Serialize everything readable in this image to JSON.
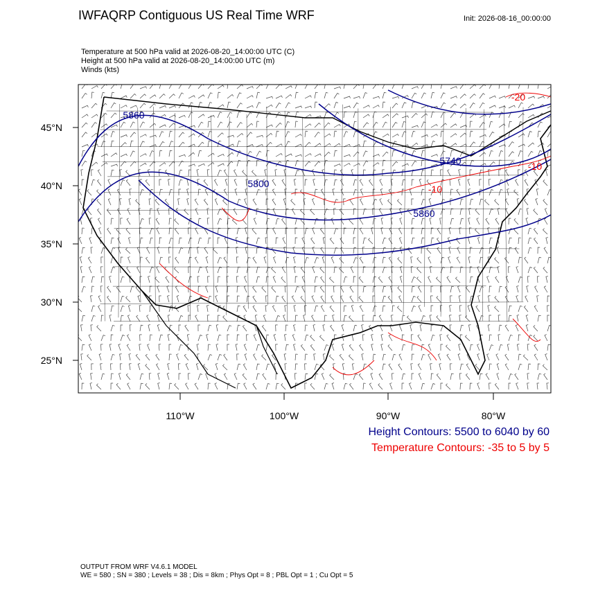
{
  "header": {
    "title": "IWFAQRP Contiguous US Real Time WRF",
    "init": "Init: 2026-08-16_00:00:00"
  },
  "fields": [
    "Temperature at 500 hPa valid at 2026-08-20_14:00:00 UTC   (C)",
    "Height at 500 hPa valid at 2026-08-20_14:00:00 UTC   (m)",
    "Winds   (kts)"
  ],
  "map": {
    "lat_labels": [
      "45°N",
      "40°N",
      "35°N",
      "30°N",
      "25°N"
    ],
    "lon_labels": [
      "110°W",
      "100°W",
      "90°W",
      "80°W"
    ],
    "height_labels": [
      "5860",
      "5800",
      "5740",
      "5860"
    ],
    "temperature_labels": [
      "-10",
      "-10",
      "-20"
    ]
  },
  "legend": {
    "height": "Height Contours: 5500 to 6040 by 60",
    "temperature": "Temperature Contours: -35 to 5 by 5"
  },
  "footer": [
    "OUTPUT FROM WRF V4.6.1 MODEL",
    "WE = 580 ; SN = 380 ; Levels = 38 ; Dis = 8km ; Phys Opt = 8 ; PBL Opt = 1 ; Cu Opt = 5"
  ]
}
